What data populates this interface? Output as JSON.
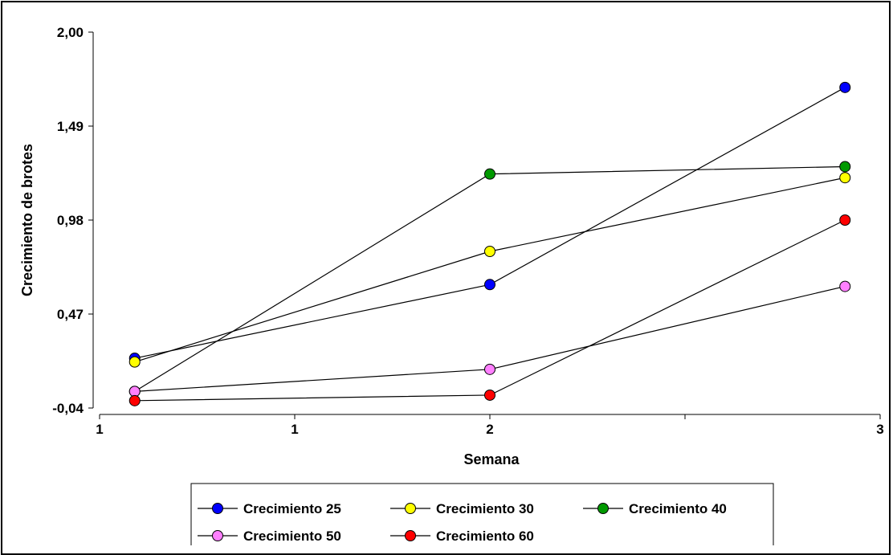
{
  "chart_data": {
    "type": "line",
    "title": "",
    "xlabel": "Semana",
    "ylabel": "Crecimiento de brotes",
    "xlim": [
      1.0,
      3.0
    ],
    "ylim": [
      -0.04,
      2.0
    ],
    "x_tick_values": [
      1.0,
      1.5,
      2.0,
      2.5,
      3.0
    ],
    "x_tick_labels": [
      "1",
      "1",
      "2",
      "",
      "3"
    ],
    "y_tick_values": [
      -0.04,
      0.47,
      0.98,
      1.49,
      2.0
    ],
    "y_tick_labels": [
      "-0,04",
      "0,47",
      "0,98",
      "1,49",
      "2,00"
    ],
    "grid": false,
    "legend_position": "bottom",
    "x": [
      1.09,
      2.0,
      2.91
    ],
    "series": [
      {
        "name": "Crecimiento 25",
        "color": "#0000ff",
        "values": [
          0.23,
          0.63,
          1.7
        ]
      },
      {
        "name": "Crecimiento 30",
        "color": "#ffff00",
        "values": [
          0.21,
          0.81,
          1.21
        ]
      },
      {
        "name": "Crecimiento 40",
        "color": "#009900",
        "values": [
          0.05,
          1.23,
          1.27
        ]
      },
      {
        "name": "Crecimiento 50",
        "color": "#ff80ff",
        "values": [
          0.05,
          0.17,
          0.62
        ]
      },
      {
        "name": "Crecimiento 60",
        "color": "#ff0000",
        "values": [
          0.0,
          0.03,
          0.98
        ]
      }
    ]
  }
}
